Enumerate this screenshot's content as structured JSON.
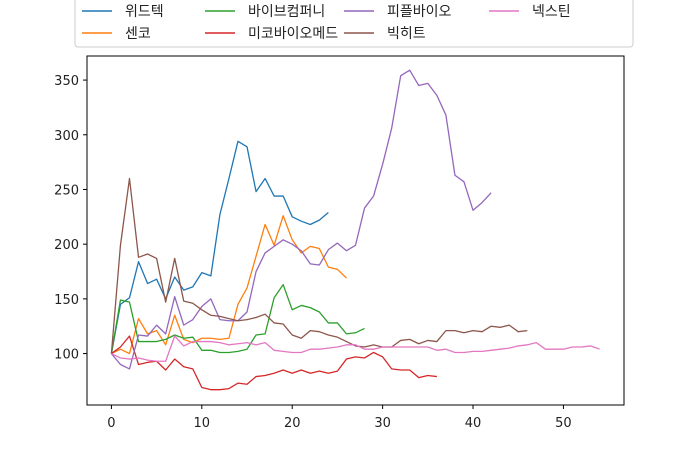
{
  "chart_data": {
    "type": "line",
    "title": "",
    "xlabel": "",
    "ylabel": "",
    "xlim": [
      -2.7,
      56.7
    ],
    "ylim": [
      53,
      372
    ],
    "xticks": [
      0,
      10,
      20,
      30,
      40,
      50
    ],
    "yticks": [
      100,
      150,
      200,
      250,
      300,
      350
    ],
    "grid": false,
    "legend_position": "top",
    "series": [
      {
        "name": "위드텍",
        "color": "#1f77b4",
        "x": [
          0,
          1,
          2,
          3,
          4,
          5,
          6,
          7,
          8,
          9,
          10,
          11,
          12,
          13,
          14,
          15,
          16,
          17,
          18,
          19,
          20,
          21,
          22,
          23,
          24
        ],
        "values": [
          100,
          145,
          151,
          184,
          164,
          168,
          150,
          170,
          158,
          161,
          174,
          171,
          227,
          260,
          294,
          289,
          248,
          260,
          244,
          244,
          225,
          221,
          218,
          222,
          229
        ]
      },
      {
        "name": "센코",
        "color": "#ff7f0e",
        "x": [
          0,
          1,
          2,
          3,
          4,
          5,
          6,
          7,
          8,
          9,
          10,
          11,
          12,
          13,
          14,
          15,
          16,
          17,
          18,
          19,
          20,
          21,
          22,
          23,
          24,
          25,
          26
        ],
        "values": [
          100,
          104,
          100,
          132,
          118,
          121,
          108,
          135,
          113,
          110,
          114,
          114,
          113,
          114,
          145,
          160,
          189,
          218,
          199,
          226,
          204,
          192,
          198,
          196,
          179,
          177,
          169
        ]
      },
      {
        "name": "바이브컴퍼니",
        "color": "#2ca02c",
        "x": [
          0,
          1,
          2,
          3,
          4,
          5,
          6,
          7,
          8,
          9,
          10,
          11,
          12,
          13,
          14,
          15,
          16,
          17,
          18,
          19,
          20,
          21,
          22,
          23,
          24,
          25,
          26,
          27,
          28
        ],
        "values": [
          100,
          149,
          147,
          111,
          111,
          111,
          113,
          117,
          114,
          115,
          103,
          103,
          101,
          101,
          102,
          104,
          117,
          118,
          151,
          163,
          140,
          144,
          142,
          138,
          128,
          128,
          118,
          119,
          123
        ]
      },
      {
        "name": "미코바이오메드",
        "color": "#d62728",
        "x": [
          0,
          1,
          2,
          3,
          4,
          5,
          6,
          7,
          8,
          9,
          10,
          11,
          12,
          13,
          14,
          15,
          16,
          17,
          18,
          19,
          20,
          21,
          22,
          23,
          24,
          25,
          26,
          27,
          28,
          29,
          30,
          31,
          32,
          33,
          34,
          35,
          36
        ],
        "values": [
          100,
          106,
          116,
          90,
          92,
          93,
          85,
          95,
          88,
          86,
          69,
          67,
          67,
          68,
          73,
          72,
          79,
          80,
          82,
          85,
          82,
          85,
          82,
          84,
          82,
          84,
          95,
          97,
          96,
          101,
          97,
          86,
          85,
          85,
          78,
          80,
          79
        ]
      },
      {
        "name": "피플바이오",
        "color": "#9467bd",
        "x": [
          0,
          1,
          2,
          3,
          4,
          5,
          6,
          7,
          8,
          9,
          10,
          11,
          12,
          13,
          14,
          15,
          16,
          17,
          18,
          19,
          20,
          21,
          22,
          23,
          24,
          25,
          26,
          27,
          28,
          29,
          30,
          31,
          32,
          33,
          34,
          35,
          36,
          37,
          38,
          39,
          40,
          41,
          42
        ],
        "values": [
          100,
          90,
          86,
          117,
          116,
          126,
          118,
          152,
          126,
          131,
          143,
          150,
          131,
          130,
          130,
          138,
          175,
          192,
          198,
          204,
          200,
          194,
          182,
          181,
          195,
          201,
          194,
          199,
          233,
          244,
          273,
          306,
          354,
          359,
          345,
          347,
          336,
          318,
          263,
          257,
          231,
          238,
          247
        ]
      },
      {
        "name": "빅히트",
        "color": "#8c564b",
        "x": [
          0,
          1,
          2,
          3,
          4,
          5,
          6,
          7,
          8,
          9,
          10,
          11,
          12,
          13,
          14,
          15,
          16,
          17,
          18,
          19,
          20,
          21,
          22,
          23,
          24,
          25,
          26,
          27,
          28,
          29,
          30,
          31,
          32,
          33,
          34,
          35,
          36,
          37,
          38,
          39,
          40,
          41,
          42,
          43,
          44,
          45,
          46
        ],
        "values": [
          100,
          199,
          260,
          188,
          191,
          187,
          147,
          187,
          148,
          146,
          140,
          135,
          134,
          132,
          130,
          131,
          133,
          136,
          128,
          127,
          117,
          114,
          121,
          120,
          117,
          115,
          111,
          107,
          106,
          108,
          106,
          106,
          112,
          113,
          109,
          112,
          111,
          121,
          121,
          119,
          121,
          120,
          125,
          124,
          126,
          120,
          121
        ]
      },
      {
        "name": "넥스틴",
        "color": "#e377c2",
        "x": [
          0,
          1,
          2,
          3,
          4,
          5,
          6,
          7,
          8,
          9,
          10,
          11,
          12,
          13,
          14,
          15,
          16,
          17,
          18,
          19,
          20,
          21,
          22,
          23,
          24,
          25,
          26,
          27,
          28,
          29,
          30,
          31,
          32,
          33,
          34,
          35,
          36,
          37,
          38,
          39,
          40,
          41,
          42,
          43,
          44,
          45,
          46,
          47,
          48,
          49,
          50,
          51,
          52,
          53,
          54
        ],
        "values": [
          100,
          96,
          95,
          96,
          94,
          93,
          93,
          116,
          107,
          111,
          111,
          111,
          110,
          108,
          109,
          110,
          108,
          110,
          103,
          102,
          101,
          101,
          104,
          104,
          105,
          106,
          108,
          108,
          104,
          104,
          106,
          106,
          106,
          106,
          106,
          106,
          103,
          104,
          101,
          101,
          102,
          102,
          103,
          104,
          105,
          107,
          108,
          110,
          104,
          104,
          104,
          106,
          106,
          107,
          104
        ]
      }
    ]
  }
}
